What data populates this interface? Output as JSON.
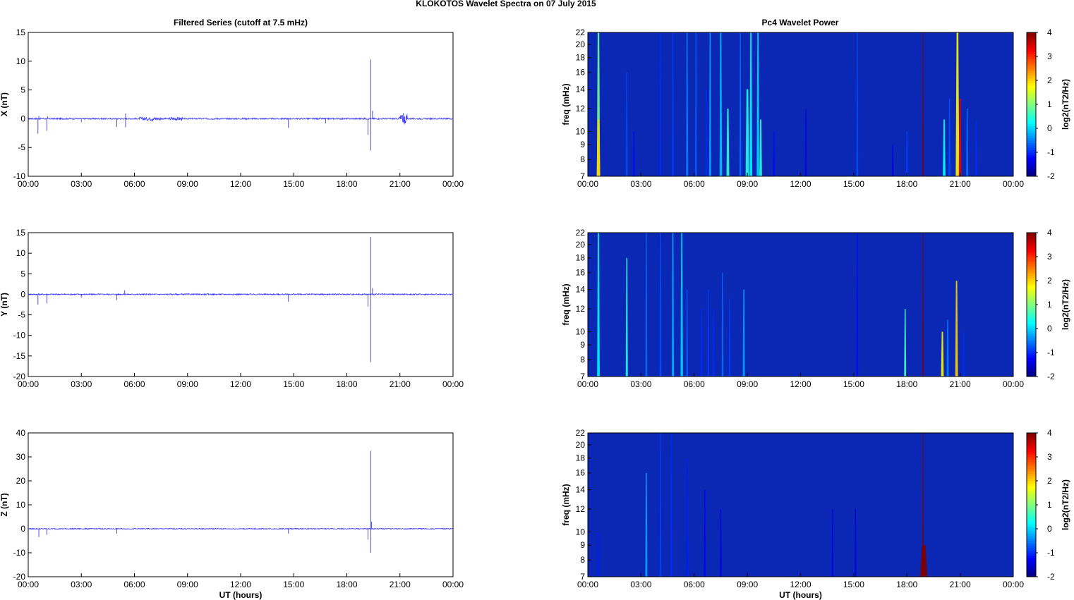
{
  "figure": {
    "title": "KLOKOTOS Wavelet Spectra on 07 July      2015",
    "left_title": "Filtered Series (cutoff at 7.5 mHz)",
    "right_title": "Pc4 Wavelet Power",
    "xlabel": "UT (hours)",
    "colors": {
      "trace": "#3a3aff",
      "spectrum_bg": "#0a28b4",
      "axis": "#000000"
    }
  },
  "chart_data": [
    {
      "type": "line",
      "component": "X",
      "ylabel": "X (nT)",
      "xlabel": "",
      "xlim": [
        0,
        24
      ],
      "ylim": [
        -10,
        15
      ],
      "yticks": [
        -10,
        -5,
        0,
        5,
        10,
        15
      ],
      "xticks": [
        "00:00",
        "03:00",
        "06:00",
        "09:00",
        "12:00",
        "15:00",
        "18:00",
        "21:00",
        "00:00"
      ],
      "noise": 0.12,
      "spikes": [
        [
          0.55,
          -2.6
        ],
        [
          0.6,
          0.5
        ],
        [
          1.05,
          -2.1
        ],
        [
          1.1,
          0.4
        ],
        [
          3.0,
          -0.6
        ],
        [
          5.0,
          -1.4
        ],
        [
          5.5,
          -1.5
        ],
        [
          5.5,
          0.9
        ],
        [
          7.0,
          -0.5
        ],
        [
          14.7,
          -1.6
        ],
        [
          16.8,
          -0.8
        ],
        [
          19.2,
          -2.8
        ],
        [
          19.35,
          10.3
        ],
        [
          19.35,
          -5.5
        ],
        [
          19.45,
          1.4
        ],
        [
          21.2,
          1.0
        ],
        [
          21.25,
          -1.0
        ]
      ],
      "bursts": [
        [
          6.3,
          7.5,
          0.3
        ],
        [
          8.0,
          8.7,
          0.3
        ],
        [
          20.95,
          21.4,
          0.8
        ]
      ]
    },
    {
      "type": "line",
      "component": "Y",
      "ylabel": "Y (nT)",
      "xlabel": "",
      "xlim": [
        0,
        24
      ],
      "ylim": [
        -20,
        15
      ],
      "yticks": [
        -20,
        -15,
        -10,
        -5,
        0,
        5,
        10,
        15
      ],
      "xticks": [
        "00:00",
        "03:00",
        "06:00",
        "09:00",
        "12:00",
        "15:00",
        "18:00",
        "21:00",
        "00:00"
      ],
      "noise": 0.15,
      "spikes": [
        [
          0.55,
          -2.5
        ],
        [
          1.05,
          -2.2
        ],
        [
          3.0,
          -0.8
        ],
        [
          5.0,
          -1.4
        ],
        [
          5.45,
          1.0
        ],
        [
          14.7,
          -1.8
        ],
        [
          19.2,
          -3.0
        ],
        [
          19.35,
          14.0
        ],
        [
          19.35,
          -16.5
        ],
        [
          19.45,
          1.5
        ]
      ],
      "bursts": []
    },
    {
      "type": "line",
      "component": "Z",
      "ylabel": "Z (nT)",
      "xlabel": "UT (hours)",
      "xlim": [
        0,
        24
      ],
      "ylim": [
        -20,
        40
      ],
      "yticks": [
        -20,
        -10,
        0,
        10,
        20,
        30,
        40
      ],
      "xticks": [
        "00:00",
        "03:00",
        "06:00",
        "09:00",
        "12:00",
        "15:00",
        "18:00",
        "21:00",
        "00:00"
      ],
      "noise": 0.2,
      "spikes": [
        [
          0.6,
          -3.5
        ],
        [
          1.05,
          -2.5
        ],
        [
          5.0,
          -2.0
        ],
        [
          14.7,
          -2.0
        ],
        [
          19.2,
          -4.5
        ],
        [
          19.35,
          32.5
        ],
        [
          19.35,
          -10.0
        ],
        [
          19.4,
          3.0
        ]
      ],
      "bursts": []
    },
    {
      "type": "heatmap",
      "component": "X",
      "ylabel": "freq (mHz)",
      "xlabel": "",
      "xlim": [
        0,
        24
      ],
      "ylim": [
        7,
        22
      ],
      "yticks": [
        7,
        8,
        9,
        10,
        12,
        14,
        16,
        18,
        20,
        22
      ],
      "xticks": [
        "00:00",
        "03:00",
        "06:00",
        "09:00",
        "12:00",
        "15:00",
        "18:00",
        "21:00",
        "00:00"
      ],
      "colorbar": {
        "label": "log2(nT2/Hz)",
        "range": [
          -2,
          4
        ],
        "ticks": [
          -2,
          -1,
          0,
          1,
          2,
          3,
          4
        ]
      },
      "streaks": [
        [
          0.6,
          0.9,
          22,
          0.18
        ],
        [
          0.6,
          2.0,
          11,
          0.2
        ],
        [
          2.2,
          -0.8,
          16,
          0.1
        ],
        [
          2.6,
          -1.2,
          10,
          0.1
        ],
        [
          4.1,
          -1.0,
          22,
          0.1
        ],
        [
          4.8,
          -0.9,
          22,
          0.1
        ],
        [
          5.6,
          -0.5,
          22,
          0.12
        ],
        [
          6.1,
          -0.7,
          22,
          0.1
        ],
        [
          6.7,
          -1.0,
          14,
          0.1
        ],
        [
          6.9,
          -0.3,
          22,
          0.12
        ],
        [
          7.5,
          -0.1,
          22,
          0.14
        ],
        [
          7.9,
          0.5,
          12,
          0.16
        ],
        [
          8.6,
          -0.6,
          22,
          0.1
        ],
        [
          9.0,
          0.4,
          14,
          0.2
        ],
        [
          9.2,
          0.2,
          22,
          0.15
        ],
        [
          9.6,
          0.0,
          22,
          0.15
        ],
        [
          9.75,
          0.5,
          11,
          0.15
        ],
        [
          10.5,
          -1.2,
          10,
          0.1
        ],
        [
          12.3,
          -1.4,
          12,
          0.1
        ],
        [
          15.2,
          -0.8,
          22,
          0.1
        ],
        [
          17.2,
          -1.4,
          9,
          0.1
        ],
        [
          18.0,
          -0.9,
          10,
          0.12
        ],
        [
          18.9,
          4.0,
          22,
          0.08
        ],
        [
          20.1,
          0.3,
          11,
          0.15
        ],
        [
          20.4,
          -0.8,
          13,
          0.12
        ],
        [
          20.85,
          1.8,
          22,
          0.2
        ],
        [
          21.0,
          3.4,
          13,
          0.15
        ],
        [
          21.4,
          -0.6,
          12,
          0.12
        ],
        [
          21.9,
          -1.0,
          11,
          0.1
        ]
      ]
    },
    {
      "type": "heatmap",
      "component": "Y",
      "ylabel": "freq (mHz)",
      "xlabel": "",
      "xlim": [
        0,
        24
      ],
      "ylim": [
        7,
        22
      ],
      "yticks": [
        7,
        8,
        9,
        10,
        12,
        14,
        16,
        18,
        20,
        22
      ],
      "xticks": [
        "00:00",
        "03:00",
        "06:00",
        "09:00",
        "12:00",
        "15:00",
        "18:00",
        "21:00",
        "00:00"
      ],
      "colorbar": {
        "label": "log2(nT2/Hz)",
        "range": [
          -2,
          4
        ],
        "ticks": [
          -2,
          -1,
          0,
          1,
          2,
          3,
          4
        ]
      },
      "streaks": [
        [
          0.6,
          0.2,
          22,
          0.15
        ],
        [
          2.2,
          0.4,
          18,
          0.12
        ],
        [
          3.3,
          -0.6,
          22,
          0.1
        ],
        [
          4.1,
          -0.8,
          22,
          0.1
        ],
        [
          4.8,
          -0.2,
          22,
          0.12
        ],
        [
          5.3,
          0.0,
          22,
          0.14
        ],
        [
          5.6,
          -0.7,
          14,
          0.1
        ],
        [
          6.4,
          -1.0,
          12,
          0.1
        ],
        [
          6.8,
          -0.9,
          14,
          0.1
        ],
        [
          7.1,
          -1.0,
          12,
          0.1
        ],
        [
          7.6,
          -0.6,
          16,
          0.1
        ],
        [
          8.0,
          -0.9,
          13,
          0.1
        ],
        [
          8.8,
          -0.3,
          14,
          0.12
        ],
        [
          15.2,
          -1.2,
          22,
          0.1
        ],
        [
          17.9,
          0.6,
          12,
          0.12
        ],
        [
          18.9,
          4.0,
          22,
          0.08
        ],
        [
          20.0,
          1.8,
          10,
          0.15
        ],
        [
          20.3,
          -0.5,
          11,
          0.12
        ],
        [
          20.8,
          2.0,
          15,
          0.15
        ],
        [
          21.2,
          -1.0,
          10,
          0.1
        ]
      ]
    },
    {
      "type": "heatmap",
      "component": "Z",
      "ylabel": "freq (mHz)",
      "xlabel": "UT (hours)",
      "xlim": [
        0,
        24
      ],
      "ylim": [
        7,
        22
      ],
      "yticks": [
        7,
        8,
        9,
        10,
        12,
        14,
        16,
        18,
        20,
        22
      ],
      "xticks": [
        "00:00",
        "03:00",
        "06:00",
        "09:00",
        "12:00",
        "15:00",
        "18:00",
        "21:00",
        "00:00"
      ],
      "colorbar": {
        "label": "log2(nT2/Hz)",
        "range": [
          -2,
          4
        ],
        "ticks": [
          -2,
          -1,
          0,
          1,
          2,
          3,
          4
        ]
      },
      "streaks": [
        [
          0.6,
          -1.1,
          10,
          0.1
        ],
        [
          3.3,
          -0.3,
          16,
          0.12
        ],
        [
          4.1,
          -0.9,
          22,
          0.1
        ],
        [
          4.7,
          -1.0,
          22,
          0.1
        ],
        [
          5.6,
          -1.1,
          18,
          0.1
        ],
        [
          6.6,
          -1.3,
          14,
          0.1
        ],
        [
          7.5,
          -1.4,
          12,
          0.1
        ],
        [
          13.8,
          -1.4,
          12,
          0.1
        ],
        [
          15.1,
          -1.4,
          12,
          0.1
        ],
        [
          18.9,
          4.0,
          22,
          0.08
        ],
        [
          18.95,
          4.0,
          9,
          0.4
        ]
      ]
    }
  ]
}
